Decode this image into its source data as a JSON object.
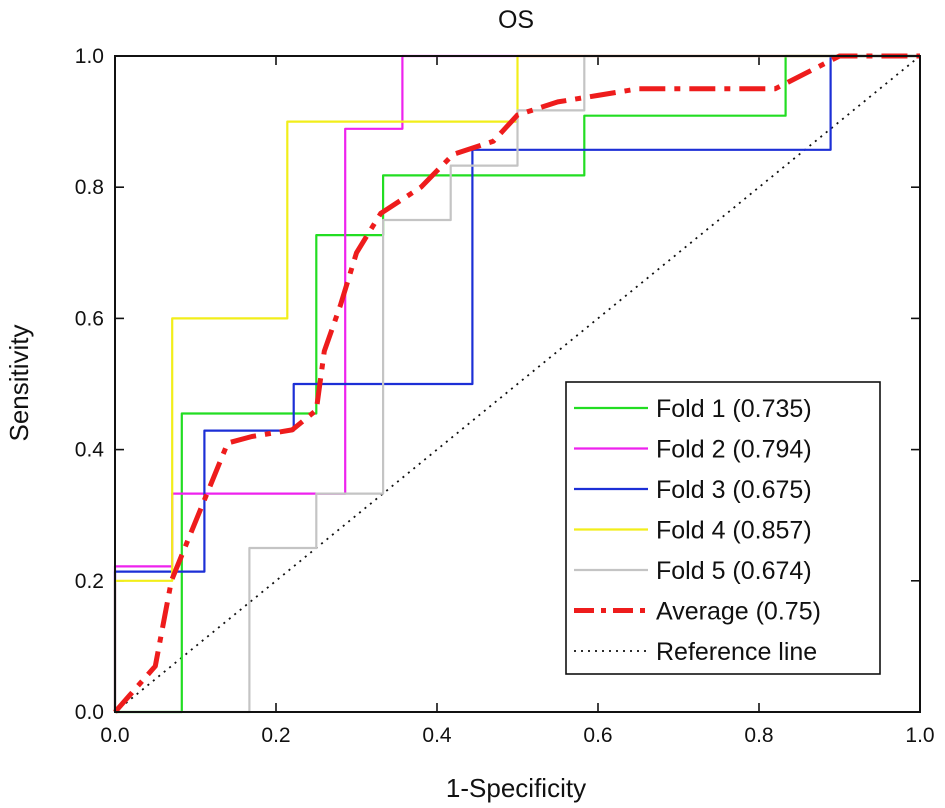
{
  "chart_data": {
    "type": "line",
    "title": "OS",
    "xlabel": "1-Specificity",
    "ylabel": "Sensitivity",
    "xlim": [
      0,
      1
    ],
    "ylim": [
      0,
      1
    ],
    "x_ticks": [
      "0.0",
      "0.2",
      "0.4",
      "0.6",
      "0.8",
      "1.0"
    ],
    "y_ticks": [
      "0.0",
      "0.2",
      "0.4",
      "0.6",
      "0.8",
      "1.0"
    ],
    "legend_position": "bottom-right",
    "series": [
      {
        "name": "Fold 1",
        "legend_label": "Fold 1 (0.735)",
        "auc": 0.735,
        "color": "#22dd22",
        "style": "solid",
        "points": [
          [
            0,
            0
          ],
          [
            0.083,
            0
          ],
          [
            0.083,
            0.455
          ],
          [
            0.25,
            0.455
          ],
          [
            0.25,
            0.727
          ],
          [
            0.333,
            0.727
          ],
          [
            0.333,
            0.818
          ],
          [
            0.583,
            0.818
          ],
          [
            0.583,
            0.909
          ],
          [
            0.833,
            0.909
          ],
          [
            0.833,
            1.0
          ],
          [
            1.0,
            1.0
          ]
        ]
      },
      {
        "name": "Fold 2",
        "legend_label": "Fold 2 (0.794)",
        "auc": 0.794,
        "color": "#ee22ee",
        "style": "solid",
        "points": [
          [
            0,
            0
          ],
          [
            0,
            0.222
          ],
          [
            0.071,
            0.222
          ],
          [
            0.071,
            0.333
          ],
          [
            0.286,
            0.333
          ],
          [
            0.286,
            0.889
          ],
          [
            0.357,
            0.889
          ],
          [
            0.357,
            1.0
          ],
          [
            1.0,
            1.0
          ]
        ]
      },
      {
        "name": "Fold 3",
        "legend_label": "Fold 3 (0.675)",
        "auc": 0.675,
        "color": "#1c2fd6",
        "style": "solid",
        "points": [
          [
            0,
            0
          ],
          [
            0,
            0.214
          ],
          [
            0.111,
            0.214
          ],
          [
            0.111,
            0.429
          ],
          [
            0.222,
            0.429
          ],
          [
            0.222,
            0.5
          ],
          [
            0.444,
            0.5
          ],
          [
            0.444,
            0.857
          ],
          [
            0.889,
            0.857
          ],
          [
            0.889,
            1.0
          ],
          [
            1.0,
            1.0
          ]
        ]
      },
      {
        "name": "Fold 4",
        "legend_label": "Fold 4 (0.857)",
        "auc": 0.857,
        "color": "#f2ee1a",
        "style": "solid",
        "points": [
          [
            0,
            0
          ],
          [
            0,
            0.2
          ],
          [
            0.071,
            0.2
          ],
          [
            0.071,
            0.6
          ],
          [
            0.214,
            0.6
          ],
          [
            0.214,
            0.9
          ],
          [
            0.5,
            0.9
          ],
          [
            0.5,
            1.0
          ],
          [
            1.0,
            1.0
          ]
        ]
      },
      {
        "name": "Fold 5",
        "legend_label": "Fold 5 (0.674)",
        "auc": 0.674,
        "color": "#c4c4c4",
        "style": "solid",
        "points": [
          [
            0,
            0
          ],
          [
            0.167,
            0
          ],
          [
            0.167,
            0.25
          ],
          [
            0.25,
            0.25
          ],
          [
            0.25,
            0.333
          ],
          [
            0.333,
            0.333
          ],
          [
            0.333,
            0.75
          ],
          [
            0.417,
            0.75
          ],
          [
            0.417,
            0.833
          ],
          [
            0.5,
            0.833
          ],
          [
            0.5,
            0.917
          ],
          [
            0.583,
            0.917
          ],
          [
            0.583,
            1.0
          ],
          [
            1.0,
            1.0
          ]
        ]
      },
      {
        "name": "Average",
        "legend_label": "Average (0.75)",
        "auc": 0.75,
        "color": "#ee1c1c",
        "style": "dashdot",
        "points": [
          [
            0,
            0
          ],
          [
            0.05,
            0.07
          ],
          [
            0.07,
            0.2
          ],
          [
            0.09,
            0.26
          ],
          [
            0.12,
            0.35
          ],
          [
            0.14,
            0.41
          ],
          [
            0.17,
            0.42
          ],
          [
            0.22,
            0.43
          ],
          [
            0.25,
            0.46
          ],
          [
            0.26,
            0.55
          ],
          [
            0.28,
            0.62
          ],
          [
            0.3,
            0.7
          ],
          [
            0.33,
            0.76
          ],
          [
            0.38,
            0.8
          ],
          [
            0.42,
            0.85
          ],
          [
            0.47,
            0.87
          ],
          [
            0.5,
            0.91
          ],
          [
            0.55,
            0.93
          ],
          [
            0.6,
            0.94
          ],
          [
            0.65,
            0.95
          ],
          [
            0.7,
            0.95
          ],
          [
            0.82,
            0.95
          ],
          [
            0.9,
            1.0
          ],
          [
            1.0,
            1.0
          ]
        ]
      },
      {
        "name": "Reference line",
        "legend_label": "Reference line",
        "color": "#111111",
        "style": "dotted",
        "points": [
          [
            0,
            0
          ],
          [
            1,
            1
          ]
        ]
      }
    ]
  }
}
